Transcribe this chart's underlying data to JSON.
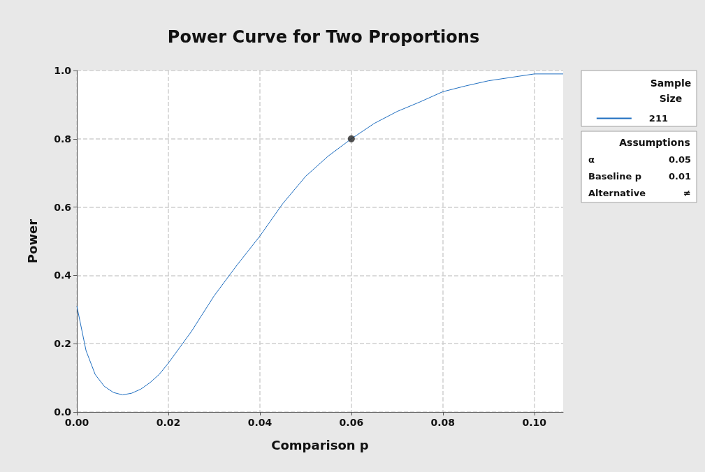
{
  "chart_data": {
    "type": "line",
    "title": "Power Curve for Two Proportions",
    "xlabel": "Comparison p",
    "ylabel": "Power",
    "legend_title": "Sample\nSize",
    "xlim": [
      0,
      0.1063
    ],
    "xticks": [
      {
        "value": 0,
        "label": "0.00"
      },
      0.02,
      0.04,
      0.06,
      0.08,
      {
        "value": 0.1,
        "label": "0.10"
      }
    ],
    "ylim": [
      0,
      1
    ],
    "yticks": [
      {
        "value": 0,
        "label": "0.0"
      },
      0.2,
      0.4,
      0.6,
      0.8,
      {
        "value": 1,
        "label": "1.0"
      }
    ],
    "grid": true,
    "legend": "top right",
    "line_style": "solid",
    "series": [
      {
        "name": "211",
        "color": "#1f6ec0",
        "marker": "none",
        "x": [
          0,
          0.002,
          0.004,
          0.006,
          0.008,
          0.01,
          0.012,
          0.014,
          0.016,
          0.018,
          0.02,
          0.025,
          0.03,
          0.035,
          0.04,
          0.045,
          0.05,
          0.055,
          0.06,
          0.065,
          0.07,
          0.075,
          0.08,
          0.085,
          0.09,
          0.095,
          0.1,
          0.1063
        ],
        "values": [
          0.31,
          0.18,
          0.11,
          0.075,
          0.057,
          0.05,
          0.055,
          0.067,
          0.086,
          0.11,
          0.143,
          0.235,
          0.34,
          0.43,
          0.515,
          0.61,
          0.69,
          0.75,
          0.8,
          0.845,
          0.88,
          0.908,
          0.938,
          0.955,
          0.97,
          0.98,
          0.99,
          0.99
        ]
      },
      {
        "type": "scatter",
        "color": "#262626",
        "marker": "circle",
        "x": [
          0.06
        ],
        "values": [
          0.8
        ]
      }
    ],
    "annotations": [
      "Assumptions",
      "α",
      "0.05",
      "Baseline p",
      "0.01",
      "Alternative",
      "≠"
    ]
  }
}
